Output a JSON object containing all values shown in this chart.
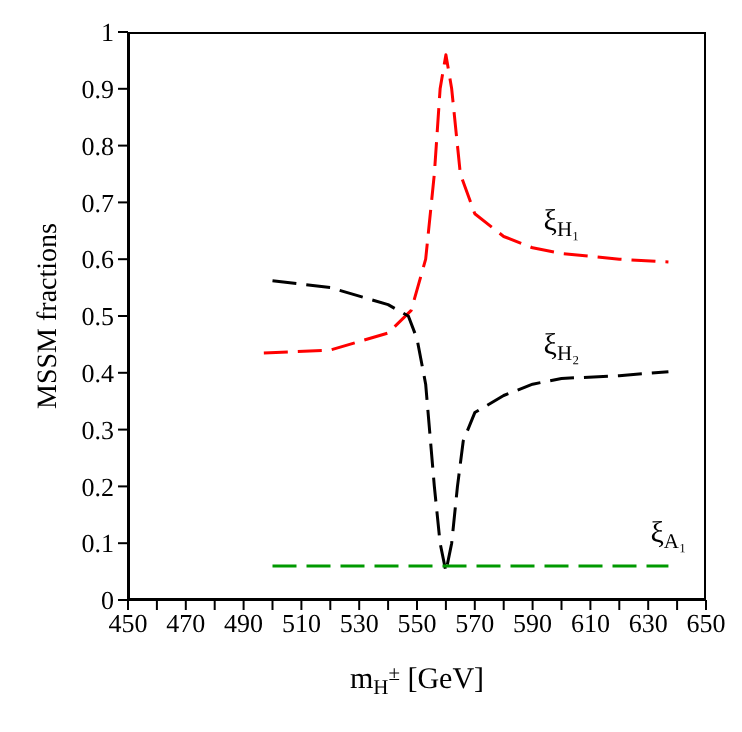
{
  "chart_data": {
    "type": "line",
    "xlabel": "m$_{H}$$^{±}$ [GeV]",
    "ylabel": "MSSM fractions",
    "xlim": [
      450,
      650
    ],
    "xticks": [
      450,
      {
        "value": 460,
        "label": null
      },
      470,
      {
        "value": 480,
        "label": null
      },
      490,
      {
        "value": 500,
        "label": null
      },
      510,
      {
        "value": 520,
        "label": null
      },
      530,
      {
        "value": 540,
        "label": null
      },
      550,
      {
        "value": 560,
        "label": null
      },
      570,
      {
        "value": 580,
        "label": null
      },
      590,
      {
        "value": 600,
        "label": null
      },
      610,
      {
        "value": 620,
        "label": null
      },
      630,
      {
        "value": 640,
        "label": null
      },
      650
    ],
    "ylim": [
      0,
      1
    ],
    "yticks": [
      0,
      0.1,
      0.2,
      0.3,
      0.4,
      0.5,
      0.6,
      0.7,
      0.8,
      0.9,
      1
    ],
    "marker": "none",
    "series": [
      {
        "name": "ξ$_{H₁}$",
        "color": "#ff0000",
        "line_style": "dashed",
        "x": [
          497,
          520,
          540,
          548,
          553,
          556,
          558,
          560,
          562,
          565,
          570,
          580,
          590,
          600,
          620,
          637
        ],
        "values": [
          0.435,
          0.44,
          0.47,
          0.51,
          0.6,
          0.75,
          0.9,
          0.96,
          0.9,
          0.75,
          0.68,
          0.64,
          0.62,
          0.61,
          0.6,
          0.595
        ]
      },
      {
        "name": "ξ$_{H₂}$",
        "color": "#000000",
        "line_style": "dashed",
        "x": [
          500,
          520,
          540,
          547,
          550,
          553,
          556,
          558,
          560,
          562,
          564,
          566,
          570,
          580,
          590,
          600,
          620,
          637
        ],
        "values": [
          0.562,
          0.55,
          0.52,
          0.5,
          0.46,
          0.38,
          0.2,
          0.1,
          0.05,
          0.1,
          0.2,
          0.28,
          0.33,
          0.36,
          0.38,
          0.39,
          0.395,
          0.402
        ]
      },
      {
        "name": "ξ$_{A₁}$",
        "color": "#009900",
        "line_style": "dashed",
        "x": [
          500,
          637
        ],
        "values": [
          0.06,
          0.06
        ]
      }
    ]
  }
}
